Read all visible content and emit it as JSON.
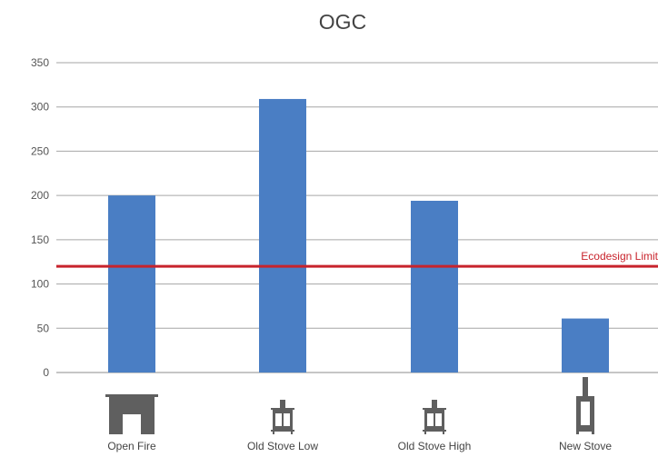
{
  "chart_data": {
    "type": "bar",
    "title": "OGC",
    "categories": [
      "Open Fire",
      "Old Stove Low",
      "Old Stove High",
      "New Stove"
    ],
    "values": [
      200,
      309,
      194,
      61
    ],
    "ylim": [
      0,
      350
    ],
    "yticks": [
      0,
      50,
      100,
      150,
      200,
      250,
      300,
      350
    ],
    "grid": true,
    "reference_line": {
      "label": "Ecodesign Limit",
      "value": 120,
      "color": "#c8232c"
    },
    "bar_color": "#4a7ec4",
    "category_icons": [
      "open-fire-icon",
      "old-stove-icon",
      "old-stove-icon",
      "new-stove-icon"
    ]
  }
}
